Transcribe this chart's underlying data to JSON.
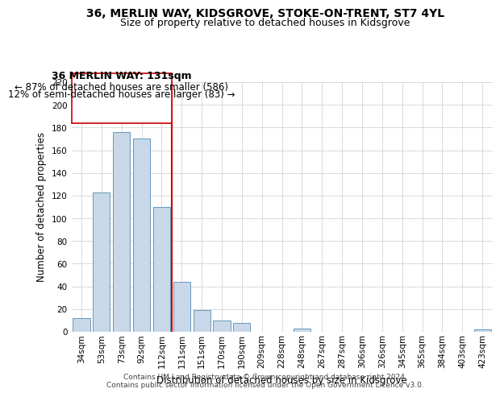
{
  "title": "36, MERLIN WAY, KIDSGROVE, STOKE-ON-TRENT, ST7 4YL",
  "subtitle": "Size of property relative to detached houses in Kidsgrove",
  "xlabel": "Distribution of detached houses by size in Kidsgrove",
  "ylabel": "Number of detached properties",
  "bar_labels": [
    "34sqm",
    "53sqm",
    "73sqm",
    "92sqm",
    "112sqm",
    "131sqm",
    "151sqm",
    "170sqm",
    "190sqm",
    "209sqm",
    "228sqm",
    "248sqm",
    "267sqm",
    "287sqm",
    "306sqm",
    "326sqm",
    "345sqm",
    "365sqm",
    "384sqm",
    "403sqm",
    "423sqm"
  ],
  "bar_values": [
    12,
    123,
    176,
    170,
    110,
    44,
    19,
    10,
    8,
    0,
    0,
    3,
    0,
    0,
    0,
    0,
    0,
    0,
    0,
    0,
    2
  ],
  "bar_color": "#c8d8e8",
  "bar_edge_color": "#6699bb",
  "highlight_index": 5,
  "highlight_line_color": "#cc0000",
  "ylim": [
    0,
    220
  ],
  "yticks": [
    0,
    20,
    40,
    60,
    80,
    100,
    120,
    140,
    160,
    180,
    200,
    220
  ],
  "annotation_title": "36 MERLIN WAY: 131sqm",
  "annotation_line1": "← 87% of detached houses are smaller (586)",
  "annotation_line2": "12% of semi-detached houses are larger (83) →",
  "annotation_box_color": "#ffffff",
  "annotation_box_edge": "#cc0000",
  "footer_line1": "Contains HM Land Registry data © Crown copyright and database right 2024.",
  "footer_line2": "Contains public sector information licensed under the Open Government Licence v3.0.",
  "title_fontsize": 10,
  "subtitle_fontsize": 9,
  "axis_label_fontsize": 8.5,
  "tick_fontsize": 7.5,
  "annotation_title_fontsize": 9,
  "annotation_body_fontsize": 8.5,
  "footer_fontsize": 6.5
}
